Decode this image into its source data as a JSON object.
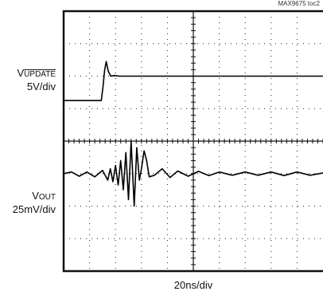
{
  "figure_id": "MAX9675 toc2",
  "chart_data": {
    "type": "line",
    "title": "",
    "xlabel": "20ns/div",
    "ylabel": "",
    "grid": true,
    "x_divisions": 10,
    "y_divisions": 8,
    "channels": [
      {
        "id": "ch1",
        "label_prefix": "V",
        "label_sub": "UPDATE",
        "label_sub_overline": true,
        "scale": "5V/div",
        "points": [
          [
            0.0,
            2.75
          ],
          [
            1.35,
            2.75
          ],
          [
            1.45,
            2.75
          ],
          [
            1.52,
            2.3
          ],
          [
            1.58,
            1.82
          ],
          [
            1.64,
            1.55
          ],
          [
            1.72,
            1.85
          ],
          [
            1.82,
            2.0
          ],
          [
            1.95,
            1.98
          ],
          [
            2.15,
            2.0
          ],
          [
            10.0,
            2.0
          ]
        ]
      },
      {
        "id": "ch2",
        "label_prefix": "V",
        "label_sub": "OUT",
        "label_sub_overline": false,
        "scale": "25mV/div",
        "points": [
          [
            0.0,
            5.0
          ],
          [
            0.3,
            4.95
          ],
          [
            0.6,
            5.08
          ],
          [
            0.9,
            4.95
          ],
          [
            1.2,
            5.1
          ],
          [
            1.5,
            4.9
          ],
          [
            1.7,
            5.2
          ],
          [
            1.8,
            4.85
          ],
          [
            1.9,
            5.25
          ],
          [
            2.0,
            4.75
          ],
          [
            2.1,
            5.35
          ],
          [
            2.2,
            4.6
          ],
          [
            2.3,
            5.5
          ],
          [
            2.4,
            4.35
          ],
          [
            2.5,
            5.8
          ],
          [
            2.6,
            4.0
          ],
          [
            2.72,
            6.0
          ],
          [
            2.82,
            4.2
          ],
          [
            2.92,
            5.2
          ],
          [
            3.0,
            4.85
          ],
          [
            3.1,
            4.3
          ],
          [
            3.2,
            4.6
          ],
          [
            3.3,
            5.1
          ],
          [
            3.5,
            5.05
          ],
          [
            3.8,
            4.85
          ],
          [
            4.1,
            5.12
          ],
          [
            4.4,
            4.92
          ],
          [
            4.8,
            5.08
          ],
          [
            5.2,
            4.93
          ],
          [
            5.6,
            5.06
          ],
          [
            6.0,
            4.95
          ],
          [
            6.5,
            5.05
          ],
          [
            7.0,
            4.95
          ],
          [
            7.5,
            5.05
          ],
          [
            8.0,
            4.95
          ],
          [
            8.5,
            5.06
          ],
          [
            9.0,
            4.95
          ],
          [
            9.5,
            5.05
          ],
          [
            10.0,
            4.98
          ]
        ]
      }
    ]
  }
}
